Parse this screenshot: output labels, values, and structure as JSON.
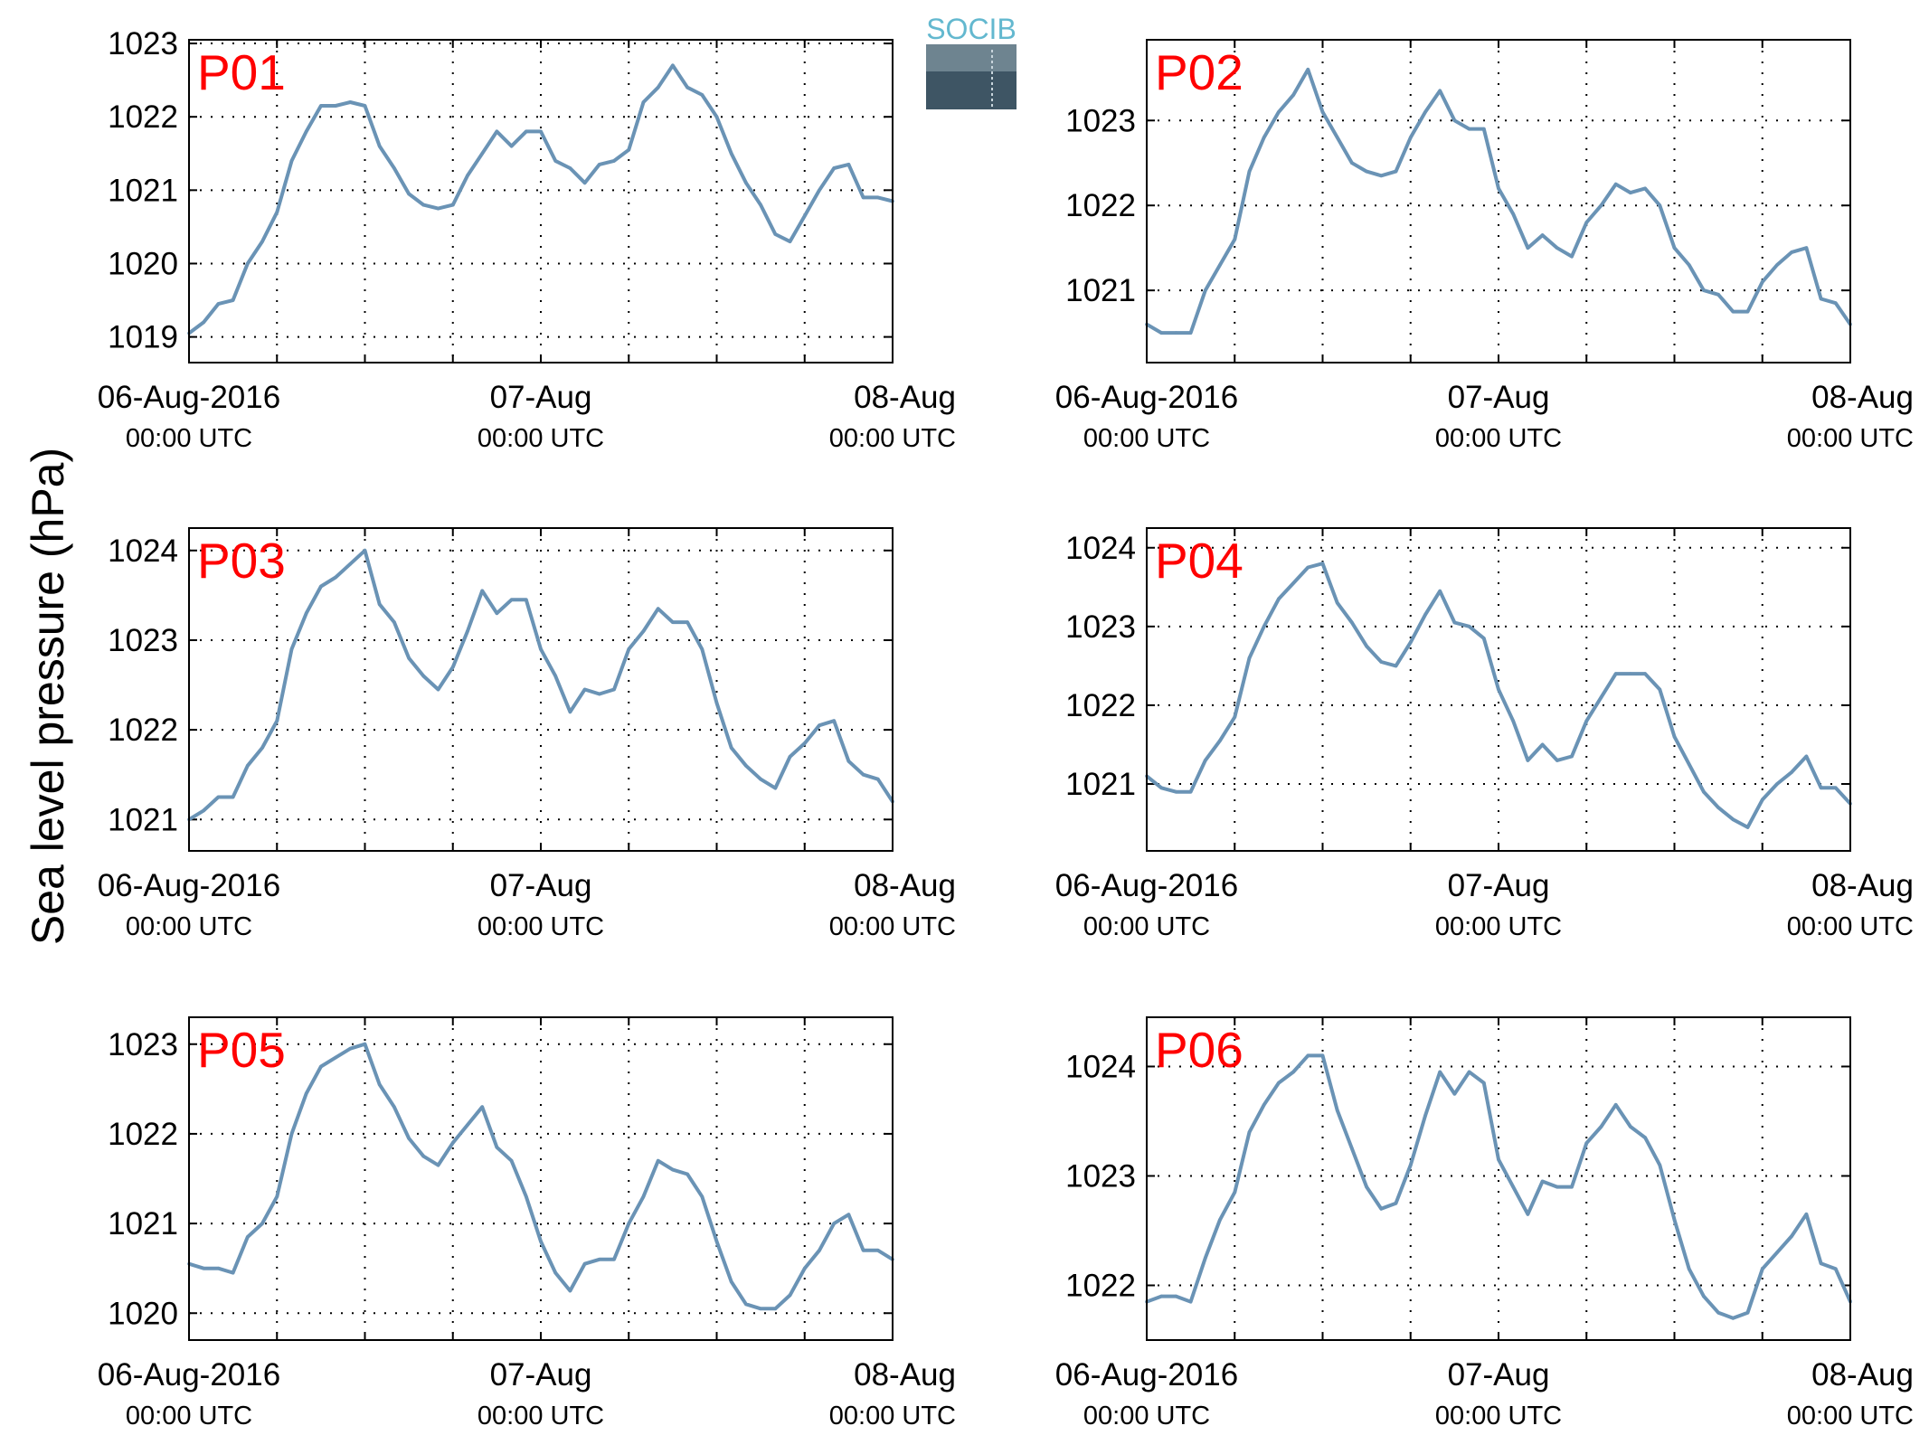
{
  "figure": {
    "ylabel": "Sea level pressure (hPa)",
    "logo_text": "SOCIB",
    "line_color": "#6a93b5",
    "panel_label_color": "#ff0000",
    "grid": true
  },
  "chart_data": [
    {
      "type": "line",
      "panel_label": "P01",
      "x_ticks": [
        {
          "main": "06-Aug-2016",
          "sub": "00:00 UTC"
        },
        {
          "main": "07-Aug",
          "sub": "00:00 UTC"
        },
        {
          "main": "08-Aug",
          "sub": "00:00 UTC"
        }
      ],
      "xlim": [
        0,
        48
      ],
      "ylim": [
        1018.65,
        1023.05
      ],
      "yticks": [
        1019,
        1020,
        1021,
        1022,
        1023
      ],
      "series": [
        {
          "x": [
            0,
            1,
            2,
            3,
            4,
            5,
            6,
            7,
            8,
            9,
            10,
            11,
            12,
            13,
            14,
            15,
            16,
            17,
            18,
            19,
            20,
            21,
            22,
            23,
            24,
            25,
            26,
            27,
            28,
            29,
            30,
            31,
            32,
            33,
            34,
            35,
            36,
            37,
            38,
            39,
            40,
            41,
            42,
            43,
            44,
            45,
            46,
            47,
            48
          ],
          "values": [
            1019.05,
            1019.2,
            1019.45,
            1019.5,
            1020.0,
            1020.3,
            1020.7,
            1021.4,
            1021.8,
            1022.15,
            1022.15,
            1022.2,
            1022.15,
            1021.6,
            1021.3,
            1020.95,
            1020.8,
            1020.75,
            1020.8,
            1021.2,
            1021.5,
            1021.8,
            1021.6,
            1021.8,
            1021.8,
            1021.4,
            1021.3,
            1021.1,
            1021.35,
            1021.4,
            1021.55,
            1022.2,
            1022.4,
            1022.7,
            1022.4,
            1022.3,
            1022.0,
            1021.5,
            1021.1,
            1020.8,
            1020.4,
            1020.3,
            1020.65,
            1021.0,
            1021.3,
            1021.35,
            1020.9,
            1020.9,
            1020.85
          ]
        }
      ]
    },
    {
      "type": "line",
      "panel_label": "P02",
      "x_ticks": [
        {
          "main": "06-Aug-2016",
          "sub": "00:00 UTC"
        },
        {
          "main": "07-Aug",
          "sub": "00:00 UTC"
        },
        {
          "main": "08-Aug",
          "sub": "00:00 UTC"
        }
      ],
      "xlim": [
        0,
        48
      ],
      "ylim": [
        1020.15,
        1023.95
      ],
      "yticks": [
        1021,
        1022,
        1023
      ],
      "series": [
        {
          "x": [
            0,
            1,
            2,
            3,
            4,
            5,
            6,
            7,
            8,
            9,
            10,
            11,
            12,
            13,
            14,
            15,
            16,
            17,
            18,
            19,
            20,
            21,
            22,
            23,
            24,
            25,
            26,
            27,
            28,
            29,
            30,
            31,
            32,
            33,
            34,
            35,
            36,
            37,
            38,
            39,
            40,
            41,
            42,
            43,
            44,
            45,
            46,
            47,
            48
          ],
          "values": [
            1020.6,
            1020.5,
            1020.5,
            1020.5,
            1021.0,
            1021.3,
            1021.6,
            1022.4,
            1022.8,
            1023.1,
            1023.3,
            1023.6,
            1023.1,
            1022.8,
            1022.5,
            1022.4,
            1022.35,
            1022.4,
            1022.8,
            1023.1,
            1023.35,
            1023.0,
            1022.9,
            1022.9,
            1022.2,
            1021.9,
            1021.5,
            1021.65,
            1021.5,
            1021.4,
            1021.8,
            1022.0,
            1022.25,
            1022.15,
            1022.2,
            1022.0,
            1021.5,
            1021.3,
            1021.0,
            1020.95,
            1020.75,
            1020.75,
            1021.1,
            1021.3,
            1021.45,
            1021.5,
            1020.9,
            1020.85,
            1020.6
          ]
        }
      ]
    },
    {
      "type": "line",
      "panel_label": "P03",
      "x_ticks": [
        {
          "main": "06-Aug-2016",
          "sub": "00:00 UTC"
        },
        {
          "main": "07-Aug",
          "sub": "00:00 UTC"
        },
        {
          "main": "08-Aug",
          "sub": "00:00 UTC"
        }
      ],
      "xlim": [
        0,
        48
      ],
      "ylim": [
        1020.65,
        1024.25
      ],
      "yticks": [
        1021,
        1022,
        1023,
        1024
      ],
      "series": [
        {
          "x": [
            0,
            1,
            2,
            3,
            4,
            5,
            6,
            7,
            8,
            9,
            10,
            11,
            12,
            13,
            14,
            15,
            16,
            17,
            18,
            19,
            20,
            21,
            22,
            23,
            24,
            25,
            26,
            27,
            28,
            29,
            30,
            31,
            32,
            33,
            34,
            35,
            36,
            37,
            38,
            39,
            40,
            41,
            42,
            43,
            44,
            45,
            46,
            47,
            48
          ],
          "values": [
            1021.0,
            1021.1,
            1021.25,
            1021.25,
            1021.6,
            1021.8,
            1022.1,
            1022.9,
            1023.3,
            1023.6,
            1023.7,
            1023.85,
            1024.0,
            1023.4,
            1023.2,
            1022.8,
            1022.6,
            1022.45,
            1022.7,
            1023.1,
            1023.55,
            1023.3,
            1023.45,
            1023.45,
            1022.9,
            1022.6,
            1022.2,
            1022.45,
            1022.4,
            1022.45,
            1022.9,
            1023.1,
            1023.35,
            1023.2,
            1023.2,
            1022.9,
            1022.3,
            1021.8,
            1021.6,
            1021.45,
            1021.35,
            1021.7,
            1021.85,
            1022.05,
            1022.1,
            1021.65,
            1021.5,
            1021.45,
            1021.2
          ]
        }
      ]
    },
    {
      "type": "line",
      "panel_label": "P04",
      "x_ticks": [
        {
          "main": "06-Aug-2016",
          "sub": "00:00 UTC"
        },
        {
          "main": "07-Aug",
          "sub": "00:00 UTC"
        },
        {
          "main": "08-Aug",
          "sub": "00:00 UTC"
        }
      ],
      "xlim": [
        0,
        48
      ],
      "ylim": [
        1020.15,
        1024.25
      ],
      "yticks": [
        1021,
        1022,
        1023,
        1024
      ],
      "series": [
        {
          "x": [
            0,
            1,
            2,
            3,
            4,
            5,
            6,
            7,
            8,
            9,
            10,
            11,
            12,
            13,
            14,
            15,
            16,
            17,
            18,
            19,
            20,
            21,
            22,
            23,
            24,
            25,
            26,
            27,
            28,
            29,
            30,
            31,
            32,
            33,
            34,
            35,
            36,
            37,
            38,
            39,
            40,
            41,
            42,
            43,
            44,
            45,
            46,
            47,
            48
          ],
          "values": [
            1021.1,
            1020.95,
            1020.9,
            1020.9,
            1021.3,
            1021.55,
            1021.85,
            1022.6,
            1023.0,
            1023.35,
            1023.55,
            1023.75,
            1023.8,
            1023.3,
            1023.05,
            1022.75,
            1022.55,
            1022.5,
            1022.8,
            1023.15,
            1023.45,
            1023.05,
            1023.0,
            1022.85,
            1022.2,
            1021.8,
            1021.3,
            1021.5,
            1021.3,
            1021.35,
            1021.8,
            1022.1,
            1022.4,
            1022.4,
            1022.4,
            1022.2,
            1021.6,
            1021.25,
            1020.9,
            1020.7,
            1020.55,
            1020.45,
            1020.8,
            1021.0,
            1021.15,
            1021.35,
            1020.95,
            1020.95,
            1020.75
          ]
        }
      ]
    },
    {
      "type": "line",
      "panel_label": "P05",
      "x_ticks": [
        {
          "main": "06-Aug-2016",
          "sub": "00:00 UTC"
        },
        {
          "main": "07-Aug",
          "sub": "00:00 UTC"
        },
        {
          "main": "08-Aug",
          "sub": "00:00 UTC"
        }
      ],
      "xlim": [
        0,
        48
      ],
      "ylim": [
        1019.7,
        1023.3
      ],
      "yticks": [
        1020,
        1021,
        1022,
        1023
      ],
      "series": [
        {
          "x": [
            0,
            1,
            2,
            3,
            4,
            5,
            6,
            7,
            8,
            9,
            10,
            11,
            12,
            13,
            14,
            15,
            16,
            17,
            18,
            19,
            20,
            21,
            22,
            23,
            24,
            25,
            26,
            27,
            28,
            29,
            30,
            31,
            32,
            33,
            34,
            35,
            36,
            37,
            38,
            39,
            40,
            41,
            42,
            43,
            44,
            45,
            46,
            47,
            48
          ],
          "values": [
            1020.55,
            1020.5,
            1020.5,
            1020.45,
            1020.85,
            1021.0,
            1021.3,
            1022.0,
            1022.45,
            1022.75,
            1022.85,
            1022.95,
            1023.0,
            1022.55,
            1022.3,
            1021.95,
            1021.75,
            1021.65,
            1021.9,
            1022.1,
            1022.3,
            1021.85,
            1021.7,
            1021.3,
            1020.8,
            1020.45,
            1020.25,
            1020.55,
            1020.6,
            1020.6,
            1021.0,
            1021.3,
            1021.7,
            1021.6,
            1021.55,
            1021.3,
            1020.8,
            1020.35,
            1020.1,
            1020.05,
            1020.05,
            1020.2,
            1020.5,
            1020.7,
            1021.0,
            1021.1,
            1020.7,
            1020.7,
            1020.6
          ]
        }
      ]
    },
    {
      "type": "line",
      "panel_label": "P06",
      "x_ticks": [
        {
          "main": "06-Aug-2016",
          "sub": "00:00 UTC"
        },
        {
          "main": "07-Aug",
          "sub": "00:00 UTC"
        },
        {
          "main": "08-Aug",
          "sub": "00:00 UTC"
        }
      ],
      "xlim": [
        0,
        48
      ],
      "ylim": [
        1021.5,
        1024.45
      ],
      "yticks": [
        1022,
        1023,
        1024
      ],
      "series": [
        {
          "x": [
            0,
            1,
            2,
            3,
            4,
            5,
            6,
            7,
            8,
            9,
            10,
            11,
            12,
            13,
            14,
            15,
            16,
            17,
            18,
            19,
            20,
            21,
            22,
            23,
            24,
            25,
            26,
            27,
            28,
            29,
            30,
            31,
            32,
            33,
            34,
            35,
            36,
            37,
            38,
            39,
            40,
            41,
            42,
            43,
            44,
            45,
            46,
            47,
            48
          ],
          "values": [
            1021.85,
            1021.9,
            1021.9,
            1021.85,
            1022.25,
            1022.6,
            1022.85,
            1023.4,
            1023.65,
            1023.85,
            1023.95,
            1024.1,
            1024.1,
            1023.6,
            1023.25,
            1022.9,
            1022.7,
            1022.75,
            1023.1,
            1023.55,
            1023.95,
            1023.75,
            1023.95,
            1023.85,
            1023.15,
            1022.9,
            1022.65,
            1022.95,
            1022.9,
            1022.9,
            1023.3,
            1023.45,
            1023.65,
            1023.45,
            1023.35,
            1023.1,
            1022.6,
            1022.15,
            1021.9,
            1021.75,
            1021.7,
            1021.75,
            1022.15,
            1022.3,
            1022.45,
            1022.65,
            1022.2,
            1022.15,
            1021.85
          ]
        }
      ]
    }
  ]
}
